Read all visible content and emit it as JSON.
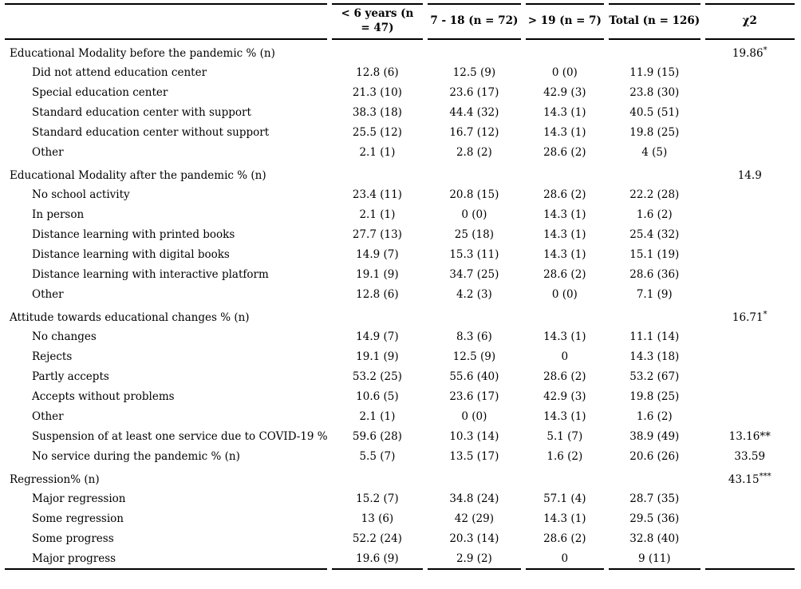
{
  "colors": {
    "text": "#000000",
    "background": "#ffffff",
    "rule": "#000000"
  },
  "table": {
    "columns": [
      "",
      "< 6 years  (n\n= 47)",
      "7 - 18  (n = 72)",
      "> 19  (n = 7)",
      "Total  (n = 126)",
      "χ2"
    ],
    "rows": [
      {
        "type": "section",
        "label": "Educational Modality before the pandemic % (n)",
        "values": [
          "",
          "",
          "",
          ""
        ],
        "chi2": "19.86",
        "chi2_sup": "*"
      },
      {
        "type": "item",
        "label": "Did not attend education center",
        "values": [
          "12.8 (6)",
          "12.5 (9)",
          "0 (0)",
          "11.9 (15)"
        ],
        "chi2": ""
      },
      {
        "type": "item",
        "label": "Special education center",
        "values": [
          "21.3 (10)",
          "23.6 (17)",
          "42.9 (3)",
          "23.8 (30)"
        ],
        "chi2": ""
      },
      {
        "type": "item",
        "label": "Standard education center with support",
        "values": [
          "38.3 (18)",
          "44.4 (32)",
          "14.3 (1)",
          "40.5 (51)"
        ],
        "chi2": ""
      },
      {
        "type": "item",
        "label": "Standard education center without support",
        "values": [
          "25.5 (12)",
          "16.7 (12)",
          "14.3 (1)",
          "19.8 (25)"
        ],
        "chi2": ""
      },
      {
        "type": "item",
        "label": "Other",
        "values": [
          "2.1 (1)",
          "2.8 (2)",
          "28.6 (2)",
          "4 (5)"
        ],
        "chi2": ""
      },
      {
        "type": "section",
        "label": "Educational Modality after the pandemic % (n)",
        "values": [
          "",
          "",
          "",
          ""
        ],
        "chi2": "14.9"
      },
      {
        "type": "item",
        "label": "No school activity",
        "values": [
          "23.4 (11)",
          "20.8 (15)",
          "28.6 (2)",
          "22.2 (28)"
        ],
        "chi2": ""
      },
      {
        "type": "item",
        "label": "In person",
        "values": [
          "2.1 (1)",
          "0 (0)",
          "14.3 (1)",
          "1.6 (2)"
        ],
        "chi2": ""
      },
      {
        "type": "item",
        "label": "Distance learning with printed books",
        "values": [
          "27.7 (13)",
          "25 (18)",
          "14.3 (1)",
          "25.4 (32)"
        ],
        "chi2": ""
      },
      {
        "type": "item",
        "label": "Distance learning with digital books",
        "values": [
          "14.9 (7)",
          "15.3 (11)",
          "14.3 (1)",
          "15.1 (19)"
        ],
        "chi2": ""
      },
      {
        "type": "item",
        "label": "Distance learning with interactive platform",
        "values": [
          "19.1 (9)",
          "34.7 (25)",
          "28.6 (2)",
          "28.6 (36)"
        ],
        "chi2": ""
      },
      {
        "type": "item",
        "label": "Other",
        "values": [
          "12.8 (6)",
          "4.2 (3)",
          "0 (0)",
          "7.1 (9)"
        ],
        "chi2": ""
      },
      {
        "type": "section",
        "label": "Attitude towards educational changes % (n)",
        "values": [
          "",
          "",
          "",
          ""
        ],
        "chi2": "16.71",
        "chi2_sup": "*"
      },
      {
        "type": "item",
        "label": "No changes",
        "values": [
          "14.9 (7)",
          "8.3 (6)",
          "14.3 (1)",
          "11.1 (14)"
        ],
        "chi2": ""
      },
      {
        "type": "item",
        "label": "Rejects",
        "values": [
          "19.1 (9)",
          "12.5 (9)",
          "0",
          "14.3 (18)"
        ],
        "chi2": ""
      },
      {
        "type": "item",
        "label": "Partly accepts",
        "values": [
          "53.2 (25)",
          "55.6 (40)",
          "28.6 (2)",
          "53.2 (67)"
        ],
        "chi2": ""
      },
      {
        "type": "item",
        "label": "Accepts without problems",
        "values": [
          "10.6 (5)",
          "23.6 (17)",
          "42.9 (3)",
          "19.8 (25)"
        ],
        "chi2": ""
      },
      {
        "type": "item",
        "label": "Other",
        "values": [
          "2.1 (1)",
          "0 (0)",
          "14.3 (1)",
          "1.6 (2)"
        ],
        "chi2": ""
      },
      {
        "type": "item",
        "label": "Suspension of at least one service due to COVID-19 % (n)",
        "values": [
          "59.6 (28)",
          "10.3 (14)",
          "5.1 (7)",
          "38.9 (49)"
        ],
        "chi2": "13.16**"
      },
      {
        "type": "item",
        "label": "No service during the pandemic % (n)",
        "values": [
          "5.5 (7)",
          "13.5 (17)",
          "1.6 (2)",
          "20.6 (26)"
        ],
        "chi2": "33.59"
      },
      {
        "type": "section",
        "label": "Regression% (n)",
        "values": [
          "",
          "",
          "",
          ""
        ],
        "chi2": "43.15",
        "chi2_sup": "***"
      },
      {
        "type": "item",
        "label": "Major regression",
        "values": [
          "15.2 (7)",
          "34.8 (24)",
          "57.1 (4)",
          "28.7 (35)"
        ],
        "chi2": ""
      },
      {
        "type": "item",
        "label": "Some regression",
        "values": [
          "13 (6)",
          "42 (29)",
          "14.3 (1)",
          "29.5 (36)"
        ],
        "chi2": ""
      },
      {
        "type": "item",
        "label": "Some progress",
        "values": [
          "52.2 (24)",
          "20.3 (14)",
          "28.6 (2)",
          "32.8 (40)"
        ],
        "chi2": ""
      },
      {
        "type": "item",
        "label": "Major progress",
        "values": [
          "19.6 (9)",
          "2.9 (2)",
          "0",
          "9 (11)"
        ],
        "chi2": ""
      }
    ]
  }
}
